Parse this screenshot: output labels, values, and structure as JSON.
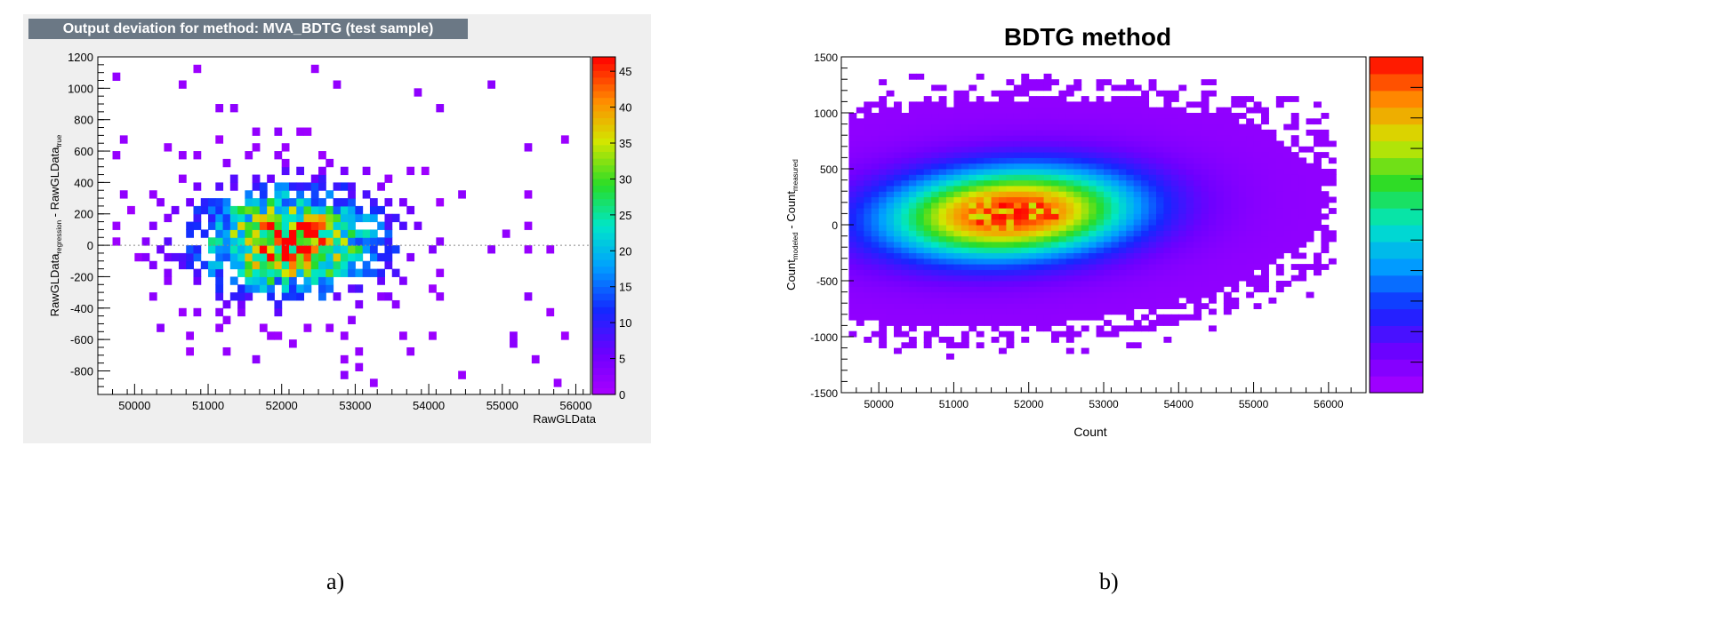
{
  "captions": {
    "a": "a)",
    "b": "b)"
  },
  "chart_data": [
    {
      "id": "a",
      "type": "heatmap",
      "title": "Output deviation for method: MVA_BDTG (test sample)",
      "xlabel": "RawGLData",
      "ylabel_main": "RawGLData",
      "ylabel_sub1": "regression",
      "ylabel_mid": " - RawGLData",
      "ylabel_sub2": "true",
      "xlim": [
        49500,
        56200
      ],
      "ylim": [
        -950,
        1200
      ],
      "xticks": [
        50000,
        51000,
        52000,
        53000,
        54000,
        55000,
        56000
      ],
      "yticks": [
        -800,
        -600,
        -400,
        -200,
        0,
        200,
        400,
        600,
        800,
        1000,
        1200
      ],
      "zlim": [
        0,
        47
      ],
      "zticks": [
        0,
        5,
        10,
        15,
        20,
        25,
        30,
        35,
        40,
        45
      ],
      "grid": false,
      "reference_line_y": 0,
      "distribution": {
        "center_x": 52050,
        "center_y": 0,
        "sigma_x": 850,
        "sigma_y": 230,
        "peak": 44
      }
    },
    {
      "id": "b",
      "type": "heatmap",
      "title": "BDTG method",
      "xlabel": "Count",
      "ylabel_main": "Count",
      "ylabel_sub1": "modeled",
      "ylabel_mid": " - Count",
      "ylabel_sub2": "measured",
      "xlim": [
        49500,
        56500
      ],
      "ylim": [
        -1500,
        1500
      ],
      "xticks": [
        50000,
        51000,
        52000,
        53000,
        54000,
        55000,
        56000
      ],
      "yticks": [
        -1500,
        -1000,
        -500,
        0,
        500,
        1000,
        1500
      ],
      "grid": false,
      "distribution": {
        "center_x": 51700,
        "center_y": 80,
        "sigma_x": 900,
        "sigma_y": 300
      }
    }
  ],
  "colors": {
    "panel_bg": "#efefef",
    "title_bar": "#6b7885"
  }
}
